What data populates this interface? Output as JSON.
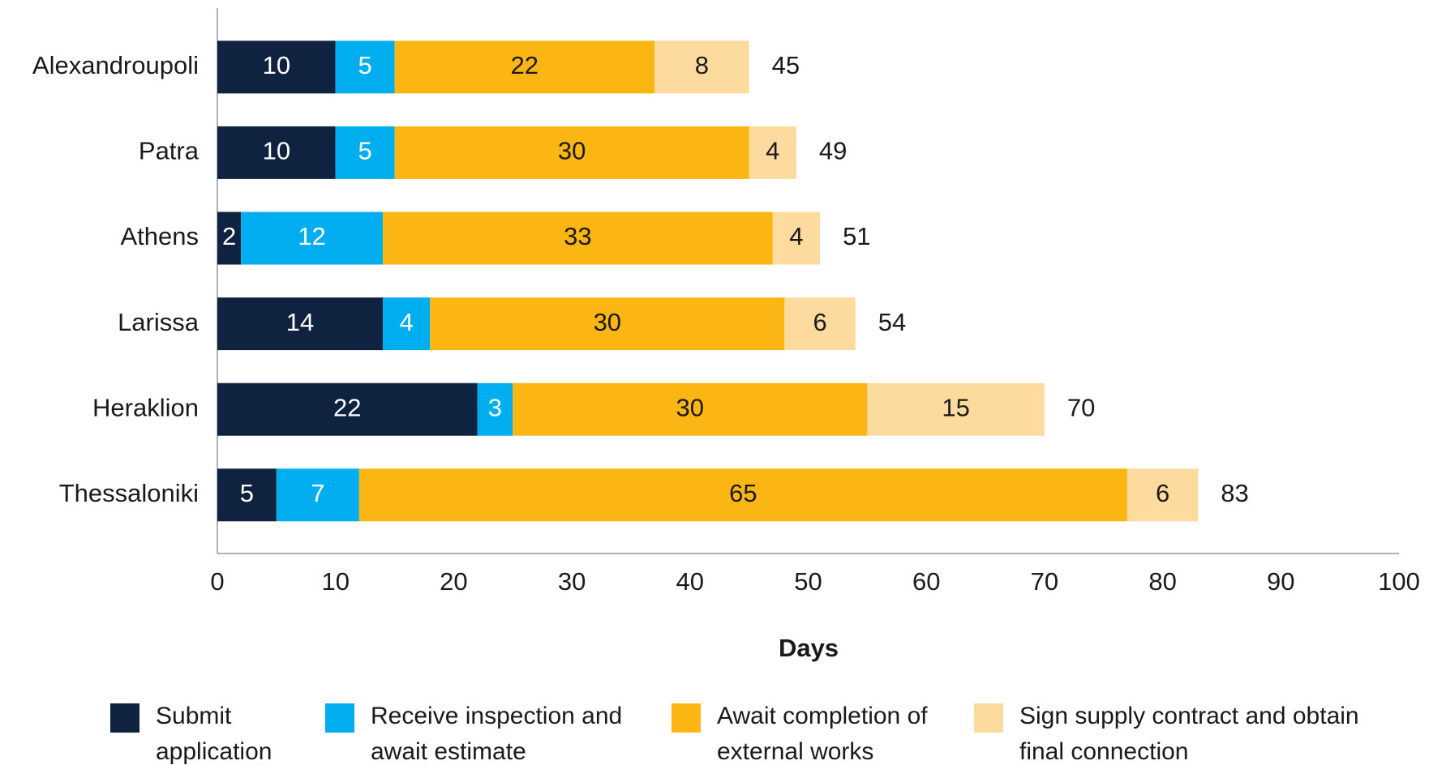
{
  "chart_data": {
    "type": "stacked-bar-horizontal",
    "x_label": "Days",
    "categories": [
      "Alexandroupoli",
      "Patra",
      "Athens",
      "Larissa",
      "Heraklion",
      "Thessaloniki"
    ],
    "series": [
      {
        "name": "Submit application",
        "color": "#0f2341",
        "values": [
          10,
          10,
          2,
          14,
          22,
          5
        ]
      },
      {
        "name": "Receive inspection and await estimate",
        "color": "#00aeef",
        "values": [
          5,
          5,
          12,
          4,
          3,
          7
        ]
      },
      {
        "name": "Await completion of external works",
        "color": "#fbb614",
        "values": [
          22,
          30,
          33,
          30,
          30,
          65
        ]
      },
      {
        "name": "Sign supply contract and obtain final connection",
        "color": "#fddb9e",
        "values": [
          8,
          4,
          4,
          6,
          15,
          6
        ]
      }
    ],
    "totals": [
      45,
      49,
      51,
      54,
      70,
      83
    ],
    "xlim": [
      0,
      100
    ],
    "xticks": [
      0,
      10,
      20,
      30,
      40,
      50,
      60,
      70,
      80,
      90,
      100
    ],
    "grid": false,
    "legend": "bottom"
  }
}
